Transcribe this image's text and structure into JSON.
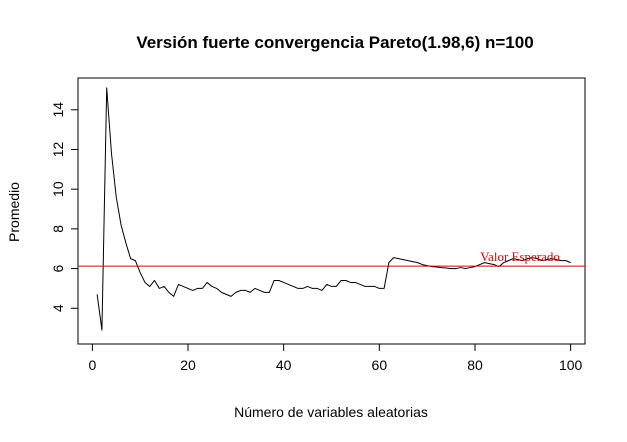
{
  "chart_data": {
    "type": "line",
    "title": "Versión fuerte convergencia Pareto(1.98,6) n=100",
    "xlabel": "Número de variables aleatorias",
    "ylabel": "Promedio",
    "xlim": [
      -3,
      103
    ],
    "ylim": [
      2.2,
      15.6
    ],
    "x_ticks": [
      0,
      20,
      40,
      60,
      80,
      100
    ],
    "y_ticks": [
      4,
      6,
      8,
      10,
      12,
      14
    ],
    "grid": false,
    "legend": "none",
    "series": [
      {
        "color": "#000000",
        "x": [
          1,
          2,
          3,
          4,
          5,
          6,
          7,
          8,
          9,
          10,
          11,
          12,
          13,
          14,
          15,
          16,
          17,
          18,
          19,
          20,
          21,
          22,
          23,
          24,
          25,
          26,
          27,
          28,
          29,
          30,
          31,
          32,
          33,
          34,
          35,
          36,
          37,
          38,
          39,
          40,
          41,
          42,
          43,
          44,
          45,
          46,
          47,
          48,
          49,
          50,
          51,
          52,
          53,
          54,
          55,
          56,
          57,
          58,
          59,
          60,
          61,
          62,
          63,
          64,
          65,
          66,
          67,
          68,
          69,
          70,
          71,
          72,
          73,
          74,
          75,
          76,
          77,
          78,
          79,
          80,
          81,
          82,
          83,
          84,
          85,
          86,
          87,
          88,
          89,
          90,
          91,
          92,
          93,
          94,
          95,
          96,
          97,
          98,
          99,
          100
        ],
        "y": [
          4.7,
          2.9,
          15.1,
          11.8,
          9.6,
          8.2,
          7.3,
          6.5,
          6.4,
          5.8,
          5.3,
          5.1,
          5.4,
          5.0,
          5.1,
          4.8,
          4.6,
          5.2,
          5.1,
          5.0,
          4.9,
          5.0,
          5.0,
          5.3,
          5.1,
          5.0,
          4.8,
          4.7,
          4.6,
          4.8,
          4.9,
          4.9,
          4.8,
          5.0,
          4.9,
          4.8,
          4.8,
          5.4,
          5.4,
          5.3,
          5.2,
          5.1,
          5.0,
          5.0,
          5.1,
          5.0,
          5.0,
          4.9,
          5.2,
          5.1,
          5.1,
          5.4,
          5.4,
          5.3,
          5.3,
          5.2,
          5.1,
          5.1,
          5.1,
          5.0,
          5.0,
          6.3,
          6.55,
          6.5,
          6.45,
          6.4,
          6.35,
          6.3,
          6.2,
          6.15,
          6.1,
          6.08,
          6.05,
          6.03,
          6.0,
          6.0,
          6.05,
          6.0,
          6.05,
          6.1,
          6.2,
          6.3,
          6.25,
          6.2,
          6.1,
          6.3,
          6.4,
          6.5,
          6.45,
          6.4,
          6.5,
          6.55,
          6.5,
          6.4,
          6.45,
          6.5,
          6.45,
          6.4,
          6.4,
          6.3
        ]
      }
    ],
    "reference_line": {
      "y": 6.12,
      "color": "#dd0000",
      "label": "Valor Esperado"
    }
  }
}
